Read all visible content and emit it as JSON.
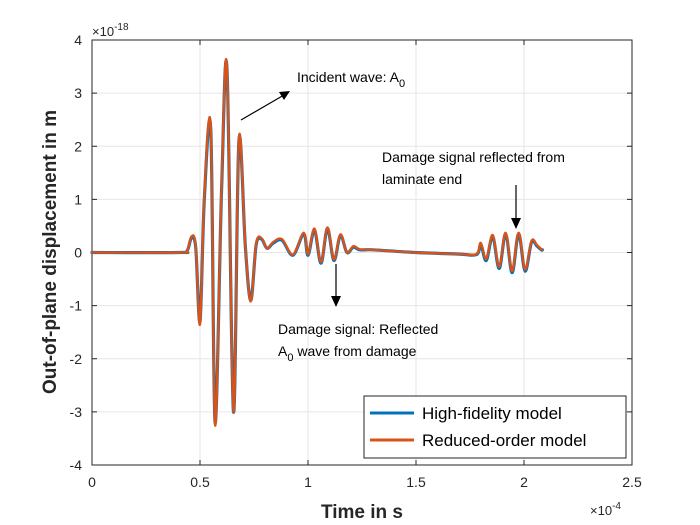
{
  "chart_data": {
    "type": "line",
    "title": "",
    "xlabel": "Time in s",
    "ylabel": "Out-of-plane displacement in m",
    "x_multiplier": "×10",
    "x_exponent": "-4",
    "y_multiplier": "×10",
    "y_exponent": "-18",
    "xlim": [
      0,
      2.5
    ],
    "ylim": [
      -4,
      4
    ],
    "x_ticks": [
      0,
      0.5,
      1,
      1.5,
      2,
      2.5
    ],
    "x_tick_labels": [
      "0",
      "0.5",
      "1",
      "1.5",
      "2",
      "2.5"
    ],
    "y_ticks": [
      -4,
      -3,
      -2,
      -1,
      0,
      1,
      2,
      3,
      4
    ],
    "y_tick_labels": [
      "-4",
      "-3",
      "-2",
      "-1",
      "0",
      "1",
      "2",
      "3",
      "4"
    ],
    "grid": true,
    "legend_position": "bottom-right",
    "series": [
      {
        "name": "High-fidelity model",
        "color": "#0072BD",
        "x": [
          0,
          0.4,
          0.44,
          0.46,
          0.48,
          0.5,
          0.52,
          0.55,
          0.57,
          0.6,
          0.625,
          0.655,
          0.68,
          0.71,
          0.735,
          0.76,
          0.785,
          0.81,
          0.84,
          0.88,
          0.93,
          0.98,
          1.0,
          1.03,
          1.06,
          1.09,
          1.12,
          1.15,
          1.18,
          1.21,
          1.24,
          1.3,
          1.5,
          1.7,
          1.78,
          1.8,
          1.825,
          1.855,
          1.885,
          1.915,
          1.945,
          1.975,
          2.005,
          2.035,
          2.06,
          2.08,
          2.085
        ],
        "y": [
          0,
          0,
          0.03,
          0.27,
          0.1,
          -1.3,
          1.0,
          2.3,
          -3.2,
          1.2,
          3.45,
          -3.0,
          2.1,
          0.1,
          -0.9,
          0.15,
          0.25,
          0.08,
          0.18,
          0.23,
          -0.05,
          0.35,
          -0.05,
          0.42,
          -0.2,
          0.45,
          -0.15,
          0.32,
          0.0,
          0.1,
          0.05,
          0.05,
          0.0,
          -0.03,
          -0.04,
          0.15,
          -0.15,
          0.3,
          -0.3,
          0.35,
          -0.38,
          0.35,
          -0.35,
          0.2,
          0.12,
          0.05,
          0.05
        ]
      },
      {
        "name": "Reduced-order model",
        "color": "#D95319",
        "x": [
          0,
          0.4,
          0.44,
          0.46,
          0.48,
          0.5,
          0.52,
          0.55,
          0.57,
          0.6,
          0.625,
          0.655,
          0.68,
          0.71,
          0.735,
          0.76,
          0.785,
          0.81,
          0.84,
          0.88,
          0.93,
          0.98,
          1.0,
          1.03,
          1.06,
          1.09,
          1.12,
          1.15,
          1.18,
          1.21,
          1.24,
          1.3,
          1.5,
          1.7,
          1.78,
          1.8,
          1.825,
          1.855,
          1.885,
          1.915,
          1.945,
          1.975,
          2.005,
          2.035,
          2.06,
          2.08,
          2.085
        ],
        "y": [
          0,
          0,
          0.03,
          0.3,
          0.12,
          -1.35,
          1.05,
          2.35,
          -3.25,
          1.25,
          3.48,
          -3.0,
          2.15,
          0.12,
          -0.92,
          0.17,
          0.27,
          0.08,
          0.2,
          0.25,
          -0.04,
          0.37,
          -0.03,
          0.45,
          -0.18,
          0.47,
          -0.13,
          0.34,
          0.0,
          0.12,
          0.06,
          0.05,
          0.0,
          -0.03,
          -0.03,
          0.18,
          -0.12,
          0.33,
          -0.27,
          0.37,
          -0.35,
          0.37,
          -0.32,
          0.22,
          0.14,
          0.06,
          0.06
        ]
      }
    ],
    "annotations": [
      {
        "lines": [
          "Incident wave: A",
          "0"
        ],
        "kind": "subscript"
      },
      {
        "lines": [
          "Damage signal reflected from",
          "laminate end"
        ],
        "kind": "plain"
      },
      {
        "lines": [
          "Damage signal: Reflected",
          "A",
          "0",
          " wave from damage"
        ],
        "kind": "subscript2"
      }
    ]
  }
}
